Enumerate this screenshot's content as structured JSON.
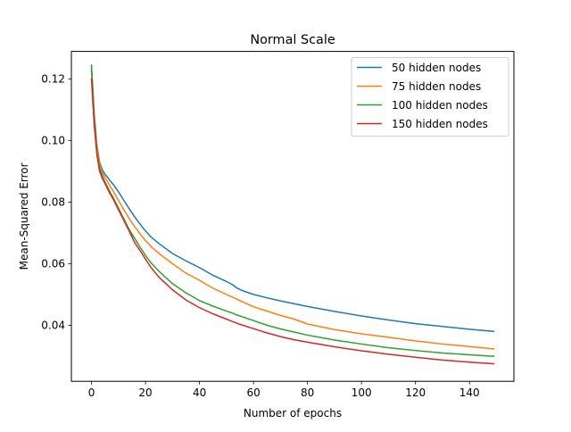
{
  "chart_data": {
    "type": "line",
    "title": "Normal Scale",
    "xlabel": "Number of epochs",
    "ylabel": "Mean-Squared Error",
    "xlim": [
      -7.45,
      156.45
    ],
    "ylim": [
      0.0218,
      0.1289
    ],
    "xticks": [
      0,
      20,
      40,
      60,
      80,
      100,
      120,
      140
    ],
    "yticks": [
      0.04,
      0.06,
      0.08,
      0.1,
      0.12
    ],
    "ytick_labels": [
      "0.04",
      "0.06",
      "0.08",
      "0.10",
      "0.12"
    ],
    "grid": false,
    "legend_position": "top-right",
    "x": [
      0,
      1,
      2,
      3,
      4,
      5,
      6,
      7,
      8,
      10,
      12,
      14,
      16,
      18,
      20,
      22,
      25,
      30,
      35,
      40,
      45,
      50,
      52,
      54,
      56,
      60,
      65,
      70,
      75,
      80,
      90,
      100,
      110,
      120,
      130,
      140,
      149
    ],
    "series": [
      {
        "name": "50 hidden nodes",
        "color": "#1f77b4",
        "values": [
          0.1244,
          0.109,
          0.0985,
          0.093,
          0.0905,
          0.089,
          0.088,
          0.0868,
          0.0858,
          0.0833,
          0.0805,
          0.0778,
          0.0752,
          0.0728,
          0.0706,
          0.0687,
          0.0665,
          0.0633,
          0.0609,
          0.0587,
          0.0562,
          0.0542,
          0.0533,
          0.052,
          0.0512,
          0.05,
          0.0489,
          0.0479,
          0.047,
          0.0461,
          0.0445,
          0.043,
          0.0417,
          0.0405,
          0.0396,
          0.0387,
          0.038
        ]
      },
      {
        "name": "75 hidden nodes",
        "color": "#ff7f0e",
        "values": [
          0.123,
          0.108,
          0.098,
          0.0925,
          0.0895,
          0.088,
          0.0865,
          0.085,
          0.0836,
          0.0805,
          0.0775,
          0.0746,
          0.072,
          0.0697,
          0.0675,
          0.0656,
          0.0633,
          0.06,
          0.0569,
          0.0546,
          0.052,
          0.05,
          0.0492,
          0.0484,
          0.0476,
          0.046,
          0.0446,
          0.0432,
          0.042,
          0.0404,
          0.0386,
          0.0372,
          0.0361,
          0.0349,
          0.0339,
          0.0331,
          0.0323
        ]
      },
      {
        "name": "100 hidden nodes",
        "color": "#2ca02c",
        "values": [
          0.1236,
          0.107,
          0.096,
          0.091,
          0.0885,
          0.0865,
          0.0848,
          0.083,
          0.0815,
          0.078,
          0.0745,
          0.071,
          0.0682,
          0.0653,
          0.0627,
          0.0603,
          0.0575,
          0.0535,
          0.0505,
          0.048,
          0.0462,
          0.0446,
          0.044,
          0.0433,
          0.0427,
          0.0415,
          0.04,
          0.0388,
          0.0378,
          0.0368,
          0.0352,
          0.0339,
          0.0327,
          0.0318,
          0.031,
          0.0304,
          0.0299
        ]
      },
      {
        "name": "150 hidden nodes",
        "color": "#d62728",
        "values": [
          0.12,
          0.105,
          0.0955,
          0.09,
          0.0877,
          0.086,
          0.0842,
          0.0825,
          0.081,
          0.0775,
          0.074,
          0.0705,
          0.0668,
          0.0642,
          0.0615,
          0.0588,
          0.0556,
          0.0515,
          0.0482,
          0.0457,
          0.0437,
          0.042,
          0.0413,
          0.0406,
          0.04,
          0.0389,
          0.0375,
          0.0363,
          0.0353,
          0.0345,
          0.033,
          0.0317,
          0.0306,
          0.0296,
          0.0287,
          0.028,
          0.0275
        ]
      }
    ]
  }
}
